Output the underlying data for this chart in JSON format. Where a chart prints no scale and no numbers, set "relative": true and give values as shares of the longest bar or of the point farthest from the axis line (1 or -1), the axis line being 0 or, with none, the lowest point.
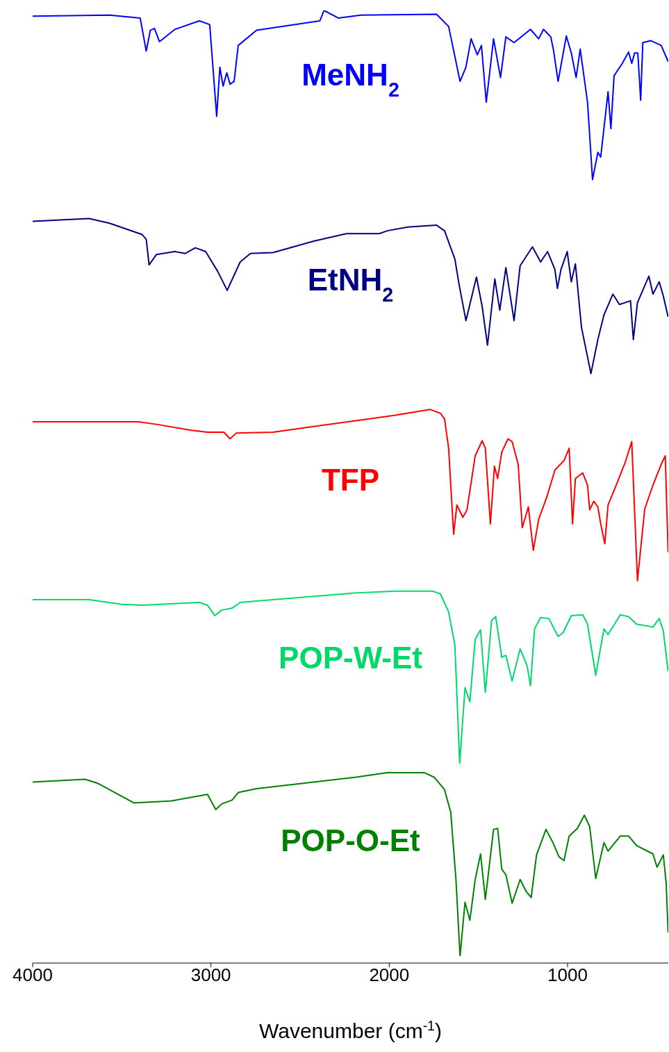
{
  "chart_data": {
    "type": "line",
    "xlabel": "Wavenumber (cm$^{-1}$)",
    "xlim": [
      4000,
      435
    ],
    "xticks": [
      4000,
      3000,
      2000,
      1000
    ],
    "relative": true,
    "series": [
      {
        "name": "MeNH$_{2}$",
        "color": "#0000ff",
        "x": [
          4000,
          3569,
          3397,
          3363,
          3340,
          3317,
          3289,
          3202,
          3065,
          3007,
          2968,
          2950,
          2932,
          2911,
          2893,
          2870,
          2847,
          2744,
          2389,
          2366,
          2286,
          2159,
          1735,
          1667,
          1603,
          1570,
          1541,
          1506,
          1483,
          1456,
          1415,
          1376,
          1346,
          1300,
          1208,
          1162,
          1135,
          1094,
          1078,
          1053,
          1007,
          979,
          952,
          929,
          888,
          860,
          830,
          814,
          773,
          757,
          739,
          693,
          658,
          640,
          624,
          606,
          590,
          578,
          532,
          475,
          436
        ],
        "values": [
          0.994,
          0.995,
          0.992,
          0.957,
          0.979,
          0.981,
          0.967,
          0.98,
          0.989,
          0.985,
          0.888,
          0.94,
          0.92,
          0.934,
          0.922,
          0.925,
          0.963,
          0.979,
          0.989,
          1,
          0.992,
          0.995,
          0.996,
          0.983,
          0.925,
          0.94,
          0.97,
          0.953,
          0.963,
          0.903,
          0.97,
          0.929,
          0.972,
          0.966,
          0.98,
          0.97,
          0.98,
          0.972,
          0.957,
          0.925,
          0.973,
          0.955,
          0.929,
          0.959,
          0.903,
          0.821,
          0.85,
          0.845,
          0.914,
          0.875,
          0.931,
          0.944,
          0.956,
          0.944,
          0.955,
          0.955,
          0.905,
          0.966,
          0.968,
          0.963,
          0.946
        ]
      },
      {
        "name": "EtNH$_{2}$",
        "color": "#000080",
        "x": [
          4000,
          3684,
          3569,
          3386,
          3363,
          3347,
          3305,
          3202,
          3145,
          3088,
          3030,
          2962,
          2909,
          2836,
          2778,
          2652,
          2423,
          2240,
          2056,
          2011,
          1896,
          1735,
          1690,
          1632,
          1609,
          1570,
          1511,
          1479,
          1449,
          1408,
          1380,
          1346,
          1300,
          1266,
          1197,
          1151,
          1112,
          1071,
          1057,
          1037,
          1002,
          979,
          956,
          922,
          869,
          830,
          796,
          746,
          709,
          647,
          631,
          608,
          544,
          521,
          486,
          463,
          436
        ],
        "values": [
          0.777,
          0.78,
          0.775,
          0.763,
          0.758,
          0.731,
          0.742,
          0.745,
          0.743,
          0.749,
          0.745,
          0.724,
          0.704,
          0.734,
          0.743,
          0.744,
          0.756,
          0.764,
          0.764,
          0.767,
          0.771,
          0.773,
          0.767,
          0.737,
          0.711,
          0.672,
          0.718,
          0.687,
          0.646,
          0.716,
          0.683,
          0.728,
          0.672,
          0.73,
          0.75,
          0.734,
          0.745,
          0.726,
          0.706,
          0.726,
          0.745,
          0.713,
          0.732,
          0.665,
          0.616,
          0.652,
          0.678,
          0.7,
          0.689,
          0.693,
          0.652,
          0.691,
          0.719,
          0.7,
          0.713,
          0.698,
          0.676
        ]
      },
      {
        "name": "TFP",
        "color": "#ff0000",
        "x": [
          4000,
          3408,
          3294,
          3111,
          3019,
          2927,
          2893,
          2858,
          2652,
          2423,
          2194,
          1965,
          1770,
          1713,
          1690,
          1667,
          1639,
          1621,
          1587,
          1564,
          1518,
          1479,
          1461,
          1433,
          1410,
          1392,
          1369,
          1334,
          1311,
          1277,
          1254,
          1220,
          1192,
          1162,
          1117,
          1071,
          1020,
          991,
          972,
          956,
          915,
          888,
          876,
          853,
          830,
          814,
          791,
          773,
          727,
          677,
          640,
          608,
          567,
          521,
          475,
          452,
          436
        ],
        "values": [
          0.565,
          0.565,
          0.562,
          0.556,
          0.554,
          0.554,
          0.547,
          0.553,
          0.554,
          0.56,
          0.566,
          0.572,
          0.578,
          0.574,
          0.568,
          0.537,
          0.446,
          0.477,
          0.464,
          0.472,
          0.529,
          0.545,
          0.537,
          0.457,
          0.518,
          0.505,
          0.533,
          0.547,
          0.544,
          0.52,
          0.453,
          0.475,
          0.429,
          0.462,
          0.485,
          0.514,
          0.524,
          0.537,
          0.457,
          0.505,
          0.511,
          0.498,
          0.472,
          0.481,
          0.475,
          0.457,
          0.436,
          0.477,
          0.498,
          0.522,
          0.544,
          0.397,
          0.473,
          0.498,
          0.52,
          0.529,
          0.427
        ]
      },
      {
        "name": "POP-W-Et",
        "color": "#00d86a",
        "x": [
          4000,
          3684,
          3500,
          3386,
          3065,
          3019,
          2978,
          2939,
          2881,
          2836,
          2652,
          2194,
          1965,
          1758,
          1713,
          1667,
          1632,
          1605,
          1575,
          1548,
          1518,
          1488,
          1461,
          1426,
          1403,
          1369,
          1346,
          1311,
          1266,
          1227,
          1208,
          1185,
          1151,
          1105,
          1053,
          1025,
          979,
          915,
          888,
          842,
          796,
          773,
          704,
          658,
          613,
          521,
          486,
          463,
          436
        ],
        "values": [
          0.377,
          0.377,
          0.372,
          0.371,
          0.374,
          0.371,
          0.36,
          0.366,
          0.368,
          0.374,
          0.377,
          0.384,
          0.386,
          0.386,
          0.383,
          0.364,
          0.329,
          0.204,
          0.284,
          0.269,
          0.335,
          0.345,
          0.279,
          0.355,
          0.359,
          0.316,
          0.318,
          0.291,
          0.325,
          0.307,
          0.286,
          0.346,
          0.358,
          0.357,
          0.338,
          0.342,
          0.36,
          0.361,
          0.351,
          0.297,
          0.346,
          0.34,
          0.361,
          0.359,
          0.351,
          0.348,
          0.357,
          0.344,
          0.301
        ]
      },
      {
        "name": "POP-O-Et",
        "color": "#008000",
        "x": [
          4000,
          3706,
          3638,
          3431,
          3340,
          3225,
          3019,
          2996,
          2973,
          2939,
          2881,
          2847,
          2744,
          2423,
          2194,
          2011,
          1804,
          1747,
          1690,
          1655,
          1626,
          1603,
          1575,
          1548,
          1518,
          1488,
          1461,
          1415,
          1392,
          1369,
          1346,
          1311,
          1266,
          1231,
          1204,
          1174,
          1121,
          1082,
          1048,
          1020,
          991,
          945,
          906,
          876,
          842,
          796,
          773,
          704,
          658,
          613,
          521,
          498,
          463,
          447,
          436
        ],
        "values": [
          0.184,
          0.187,
          0.183,
          0.162,
          0.163,
          0.164,
          0.171,
          0.163,
          0.155,
          0.161,
          0.165,
          0.173,
          0.177,
          0.184,
          0.189,
          0.194,
          0.194,
          0.189,
          0.176,
          0.152,
          0.081,
          0.0,
          0.057,
          0.038,
          0.081,
          0.108,
          0.06,
          0.134,
          0.135,
          0.092,
          0.086,
          0.056,
          0.081,
          0.068,
          0.062,
          0.107,
          0.134,
          0.12,
          0.105,
          0.101,
          0.127,
          0.135,
          0.149,
          0.137,
          0.082,
          0.12,
          0.111,
          0.127,
          0.127,
          0.117,
          0.108,
          0.094,
          0.107,
          0.077,
          0.025
        ]
      }
    ]
  }
}
